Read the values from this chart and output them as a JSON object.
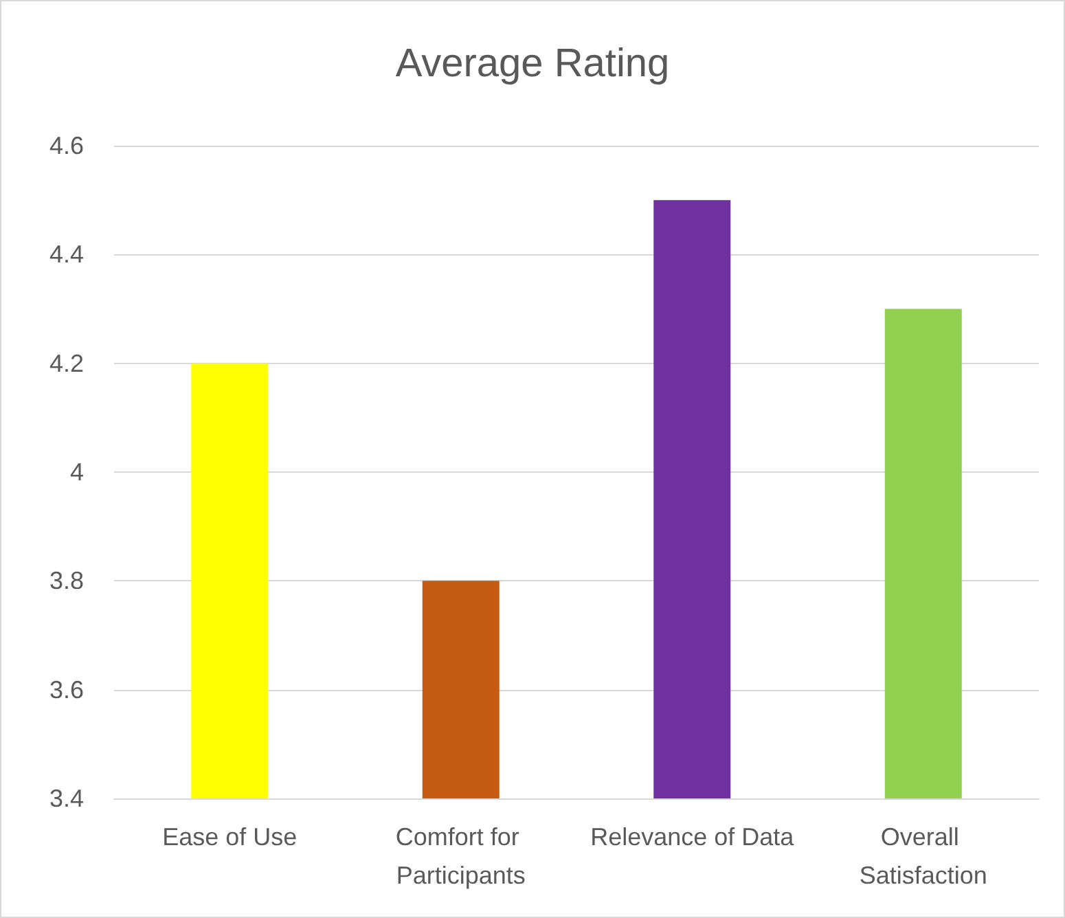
{
  "chart_data": {
    "type": "bar",
    "title": "Average Rating",
    "categories": [
      "Ease of Use",
      "Comfort for Participants",
      "Relevance of Data",
      "Overall Satisfaction"
    ],
    "values": [
      4.2,
      3.8,
      4.5,
      4.3
    ],
    "colors": [
      "#ffff00",
      "#c55a11",
      "#7030a0",
      "#92d050"
    ],
    "ylim": [
      3.4,
      4.6
    ],
    "yticks": [
      3.4,
      3.6,
      3.8,
      4,
      4.2,
      4.4,
      4.6
    ],
    "grid": "y"
  }
}
